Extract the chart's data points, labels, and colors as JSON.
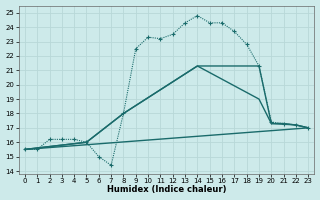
{
  "xlabel": "Humidex (Indice chaleur)",
  "xlim": [
    -0.5,
    23.5
  ],
  "ylim": [
    13.8,
    25.5
  ],
  "yticks": [
    14,
    15,
    16,
    17,
    18,
    19,
    20,
    21,
    22,
    23,
    24,
    25
  ],
  "xticks": [
    0,
    1,
    2,
    3,
    4,
    5,
    6,
    7,
    8,
    9,
    10,
    11,
    12,
    13,
    14,
    15,
    16,
    17,
    18,
    19,
    20,
    21,
    22,
    23
  ],
  "bg_color": "#cdeaea",
  "grid_color": "#b8d8d8",
  "line_color": "#1a6b6b",
  "series": [
    {
      "x": [
        0,
        1,
        2,
        3,
        4,
        5,
        6,
        7,
        8,
        9,
        10,
        11,
        12,
        13,
        14,
        15,
        16,
        17,
        18,
        19,
        20,
        21,
        22,
        23
      ],
      "y": [
        15.5,
        15.5,
        16.2,
        16.2,
        16.2,
        16.0,
        15.0,
        14.4,
        18.0,
        22.5,
        23.3,
        23.2,
        23.5,
        24.3,
        24.8,
        24.3,
        24.3,
        23.7,
        22.8,
        21.3,
        17.4,
        17.3,
        17.2,
        17.0
      ],
      "marker": "+",
      "markersize": 3,
      "linewidth": 0.8,
      "linestyle": "dotted"
    },
    {
      "x": [
        0,
        5,
        8,
        14,
        19,
        20,
        21,
        22,
        23
      ],
      "y": [
        15.5,
        16.0,
        18.0,
        21.3,
        21.3,
        17.3,
        17.3,
        17.2,
        17.0
      ],
      "marker": null,
      "markersize": 0,
      "linewidth": 1.0,
      "linestyle": "solid"
    },
    {
      "x": [
        0,
        5,
        8,
        14,
        19,
        20,
        22,
        23
      ],
      "y": [
        15.5,
        16.0,
        18.0,
        21.3,
        19.0,
        17.3,
        17.2,
        17.0
      ],
      "marker": null,
      "markersize": 0,
      "linewidth": 1.0,
      "linestyle": "solid"
    },
    {
      "x": [
        0,
        23
      ],
      "y": [
        15.5,
        17.0
      ],
      "marker": null,
      "markersize": 0,
      "linewidth": 1.0,
      "linestyle": "solid"
    }
  ]
}
